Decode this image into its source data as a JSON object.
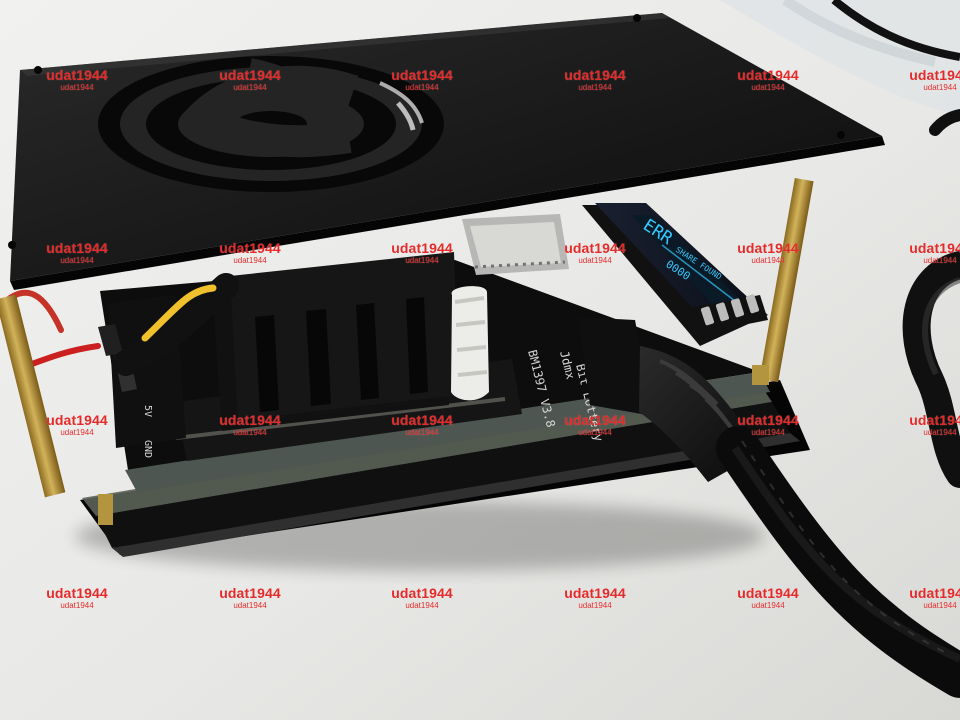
{
  "photo": {
    "pcb_labels": {
      "pin_gnd": "GND",
      "pin_5v": "5V",
      "board_model": "BM1397 V3.8",
      "board_name": "Bit Lottery",
      "brand": "Jdmx"
    },
    "watermark": {
      "main": "udat1944",
      "sub": "udat1944"
    }
  }
}
